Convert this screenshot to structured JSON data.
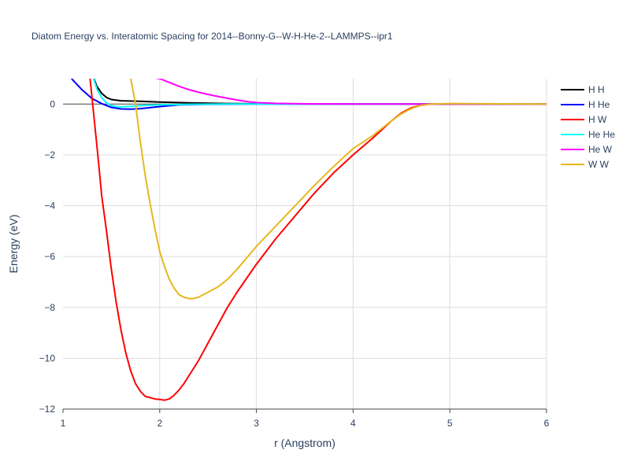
{
  "chart_data": {
    "type": "line",
    "title": "Diatom Energy vs. Interatomic Spacing for 2014--Bonny-G--W-H-He-2--LAMMPS--ipr1",
    "xlabel": "r (Angstrom)",
    "ylabel": "Energy (eV)",
    "xlim": [
      1,
      6
    ],
    "ylim": [
      -12,
      1
    ],
    "xticks": [
      1,
      2,
      3,
      4,
      5,
      6
    ],
    "yticks": [
      0,
      -2,
      -4,
      -6,
      -8,
      -10,
      -12
    ],
    "xtick_labels": [
      "1",
      "2",
      "3",
      "4",
      "5",
      "6"
    ],
    "ytick_labels": [
      "0",
      "−2",
      "−4",
      "−6",
      "−8",
      "−10",
      "−12"
    ],
    "grid": true,
    "legend_position": "right",
    "series": [
      {
        "name": "H H",
        "color": "#000000",
        "x": [
          1.3,
          1.35,
          1.4,
          1.45,
          1.5,
          1.6,
          1.8,
          2.0,
          2.3,
          2.7,
          3.0,
          4.0,
          5.0,
          6.0
        ],
        "y": [
          1.2,
          0.7,
          0.42,
          0.26,
          0.18,
          0.13,
          0.11,
          0.08,
          0.05,
          0.02,
          0.01,
          0.0,
          0.0,
          0.0
        ]
      },
      {
        "name": "H He",
        "color": "#0000ff",
        "x": [
          1.0,
          1.1,
          1.2,
          1.3,
          1.4,
          1.5,
          1.6,
          1.7,
          1.8,
          2.0,
          2.2,
          2.5,
          3.0,
          4.0,
          5.0,
          6.0
        ],
        "y": [
          1.5,
          0.95,
          0.55,
          0.22,
          0.02,
          -0.13,
          -0.19,
          -0.2,
          -0.18,
          -0.1,
          -0.03,
          -0.01,
          0.0,
          0.0,
          0.0,
          0.0
        ]
      },
      {
        "name": "H W",
        "color": "#ff0000",
        "x": [
          1.28,
          1.32,
          1.36,
          1.4,
          1.45,
          1.5,
          1.55,
          1.6,
          1.65,
          1.7,
          1.75,
          1.8,
          1.85,
          1.9,
          1.95,
          2.0,
          2.05,
          2.1,
          2.15,
          2.2,
          2.25,
          2.3,
          2.4,
          2.5,
          2.6,
          2.7,
          2.8,
          3.0,
          3.2,
          3.4,
          3.6,
          3.8,
          4.0,
          4.2,
          4.3,
          4.4,
          4.5,
          4.6,
          4.7,
          4.8,
          5.0,
          6.0
        ],
        "y": [
          1.0,
          -0.5,
          -2.0,
          -3.6,
          -5.0,
          -6.5,
          -7.8,
          -8.9,
          -9.8,
          -10.5,
          -11.0,
          -11.3,
          -11.5,
          -11.55,
          -11.6,
          -11.62,
          -11.65,
          -11.6,
          -11.45,
          -11.25,
          -11.0,
          -10.7,
          -10.1,
          -9.4,
          -8.7,
          -8.0,
          -7.4,
          -6.3,
          -5.3,
          -4.4,
          -3.5,
          -2.7,
          -2.0,
          -1.35,
          -1.0,
          -0.65,
          -0.35,
          -0.15,
          -0.05,
          0.0,
          0.0,
          0.0
        ]
      },
      {
        "name": "He He",
        "color": "#00ffff",
        "x": [
          1.3,
          1.35,
          1.4,
          1.45,
          1.5,
          1.55,
          1.6,
          1.7,
          1.8,
          2.0,
          2.3,
          2.7,
          3.0,
          4.0,
          6.0
        ],
        "y": [
          1.2,
          0.6,
          0.25,
          0.05,
          -0.06,
          -0.1,
          -0.11,
          -0.09,
          -0.06,
          -0.03,
          -0.01,
          0.0,
          0.0,
          0.0,
          0.0
        ]
      },
      {
        "name": "He W",
        "color": "#ff00ff",
        "x": [
          1.85,
          2.0,
          2.1,
          2.2,
          2.3,
          2.4,
          2.5,
          2.6,
          2.7,
          2.8,
          2.9,
          3.0,
          3.2,
          3.5,
          4.0,
          5.0,
          6.0
        ],
        "y": [
          1.1,
          1.0,
          0.85,
          0.7,
          0.57,
          0.47,
          0.38,
          0.3,
          0.23,
          0.16,
          0.1,
          0.06,
          0.03,
          0.01,
          0.0,
          0.0,
          0.0
        ]
      },
      {
        "name": "W W",
        "color": "#e6b81e",
        "x": [
          1.7,
          1.75,
          1.8,
          1.85,
          1.9,
          1.95,
          2.0,
          2.05,
          2.1,
          2.15,
          2.2,
          2.25,
          2.3,
          2.35,
          2.4,
          2.5,
          2.6,
          2.7,
          2.8,
          3.0,
          3.2,
          3.4,
          3.6,
          3.8,
          4.0,
          4.2,
          4.3,
          4.4,
          4.5,
          4.6,
          4.7,
          4.8,
          5.0,
          6.0
        ],
        "y": [
          1.0,
          0.0,
          -1.5,
          -2.8,
          -3.9,
          -4.9,
          -5.8,
          -6.4,
          -6.9,
          -7.25,
          -7.5,
          -7.6,
          -7.65,
          -7.65,
          -7.6,
          -7.4,
          -7.2,
          -6.9,
          -6.5,
          -5.6,
          -4.8,
          -4.0,
          -3.2,
          -2.45,
          -1.75,
          -1.25,
          -0.95,
          -0.65,
          -0.38,
          -0.18,
          -0.05,
          0.0,
          0.02,
          0.0
        ]
      }
    ]
  }
}
